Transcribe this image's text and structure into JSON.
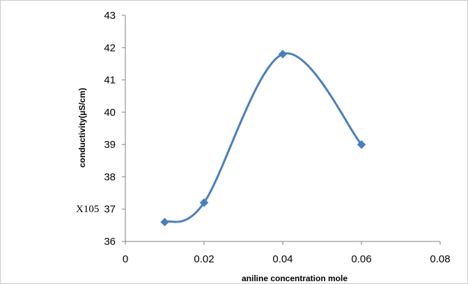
{
  "chart_data": {
    "type": "line",
    "title": "",
    "xlabel": "aniline concentration  mole",
    "ylabel": "conductivity(µS/cm)",
    "annotation": "X105",
    "xlim": [
      0,
      0.08
    ],
    "ylim": [
      36,
      43
    ],
    "x_ticks": [
      0,
      0.02,
      0.04,
      0.06,
      0.08
    ],
    "x_tick_labels": [
      "0",
      "0.02",
      "0.04",
      "0.06",
      "0.08"
    ],
    "y_ticks": [
      36,
      37,
      38,
      39,
      40,
      41,
      42,
      43
    ],
    "y_tick_labels": [
      "36",
      "37",
      "38",
      "39",
      "40",
      "41",
      "42",
      "43"
    ],
    "smooth": true,
    "grid": false,
    "legend": "none",
    "series": [
      {
        "x": [
          0.01,
          0.02,
          0.04,
          0.06
        ],
        "values": [
          36.6,
          37.2,
          41.8,
          39.0
        ],
        "color": "#4a7ebb",
        "marker": "diamond"
      }
    ]
  }
}
